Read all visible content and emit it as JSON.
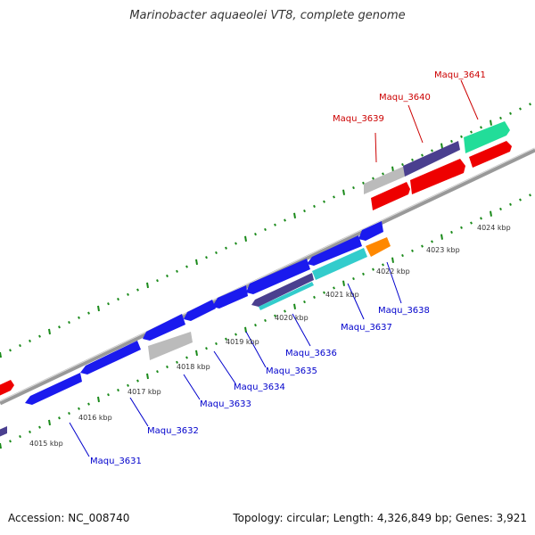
{
  "title": "Marinobacter aquaeolei VT8, complete genome",
  "footer": {
    "accession": "Accession: NC_008740",
    "summary": "Topology: circular; Length: 4,326,849 bp; Genes: 3,921"
  },
  "colors": {
    "backbone": "#888888",
    "tick": "#1a8a1a",
    "forward_label": "#cc0000",
    "reverse_label": "#0000cc",
    "blue": "#1a1aee",
    "red": "#ee0000",
    "grey": "#bbbbbb",
    "navy": "#4a3f8f",
    "teal": "#33cccc",
    "mint": "#22dd99",
    "orange": "#ff8800",
    "purple": "#6a5acd"
  },
  "kbp_ticks": [
    "4015 kbp",
    "4016 kbp",
    "4017 kbp",
    "4018 kbp",
    "4019 kbp",
    "4020 kbp",
    "4021 kbp",
    "4022 kbp",
    "4023 kbp",
    "4024 kbp"
  ],
  "forward_genes": [
    "Maqu_3639",
    "Maqu_3640",
    "Maqu_3641"
  ],
  "reverse_genes": [
    "Maqu_3631",
    "Maqu_3632",
    "Maqu_3633",
    "Maqu_3634",
    "Maqu_3635",
    "Maqu_3636",
    "Maqu_3637",
    "Maqu_3638"
  ]
}
